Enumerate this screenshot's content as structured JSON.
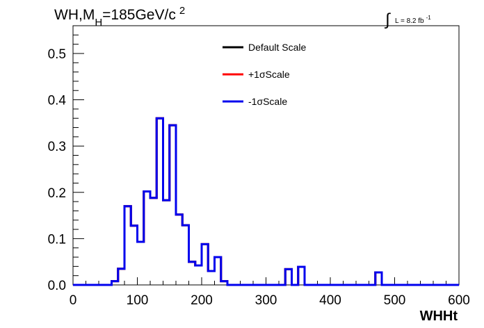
{
  "chart_data": {
    "type": "step",
    "title": {
      "prefix": "WH,M",
      "subscript": "H",
      "value": "=185GeV/c",
      "superscript": "2"
    },
    "lumi": {
      "integral": "∫",
      "text": "L = 8.2 fb",
      "superscript": "-1"
    },
    "xlabel": "WHHt",
    "ylabel": "",
    "xlim": [
      0,
      600
    ],
    "ylim": [
      0,
      0.56
    ],
    "xticks": [
      0,
      100,
      200,
      300,
      400,
      500,
      600
    ],
    "yticks": [
      0.0,
      0.1,
      0.2,
      0.3,
      0.4,
      0.5
    ],
    "xtick_labels": [
      "0",
      "100",
      "200",
      "300",
      "400",
      "500",
      "600"
    ],
    "ytick_labels": [
      "0.0",
      "0.1",
      "0.2",
      "0.3",
      "0.4",
      "0.5"
    ],
    "grid": false,
    "legend_position": "top-center",
    "bin_edges": [
      0,
      10,
      20,
      30,
      40,
      50,
      60,
      70,
      80,
      90,
      100,
      110,
      120,
      130,
      140,
      150,
      160,
      170,
      180,
      190,
      200,
      210,
      220,
      230,
      240,
      250,
      260,
      270,
      280,
      290,
      300,
      310,
      320,
      330,
      340,
      350,
      360,
      370,
      380,
      390,
      400,
      410,
      420,
      430,
      440,
      450,
      460,
      470,
      480,
      490,
      500,
      510,
      520,
      530,
      540,
      550,
      560,
      570,
      580,
      590,
      600
    ],
    "series": [
      {
        "name": "Default Scale",
        "color": "#000000",
        "values": [
          0,
          0,
          0,
          0,
          0,
          0,
          0.008,
          0.035,
          0.17,
          0.128,
          0.093,
          0.202,
          0.188,
          0.36,
          0.183,
          0.345,
          0.152,
          0.129,
          0.05,
          0.042,
          0.088,
          0.03,
          0.06,
          0.008,
          0,
          0,
          0,
          0,
          0,
          0,
          0,
          0,
          0,
          0.034,
          0,
          0.039,
          0,
          0,
          0,
          0,
          0,
          0,
          0,
          0,
          0,
          0,
          0,
          0.027,
          0,
          0,
          0,
          0,
          0,
          0,
          0,
          0,
          0,
          0,
          0,
          0
        ]
      },
      {
        "name": "+1σScale",
        "color": "#ff0000",
        "values": [
          0,
          0,
          0,
          0,
          0,
          0,
          0.008,
          0.035,
          0.17,
          0.128,
          0.093,
          0.202,
          0.188,
          0.36,
          0.183,
          0.345,
          0.152,
          0.129,
          0.05,
          0.042,
          0.088,
          0.03,
          0.06,
          0.008,
          0,
          0,
          0,
          0,
          0,
          0,
          0,
          0,
          0,
          0.034,
          0,
          0.039,
          0,
          0,
          0,
          0,
          0,
          0,
          0,
          0,
          0,
          0,
          0,
          0.027,
          0,
          0,
          0,
          0,
          0,
          0,
          0,
          0,
          0,
          0,
          0,
          0
        ]
      },
      {
        "name": "-1σScale",
        "color": "#0000ee",
        "values": [
          0,
          0,
          0,
          0,
          0,
          0,
          0.008,
          0.035,
          0.17,
          0.128,
          0.093,
          0.202,
          0.188,
          0.36,
          0.183,
          0.345,
          0.152,
          0.129,
          0.05,
          0.042,
          0.088,
          0.03,
          0.06,
          0.008,
          0,
          0,
          0,
          0,
          0,
          0,
          0,
          0,
          0,
          0.034,
          0,
          0.039,
          0,
          0,
          0,
          0,
          0,
          0,
          0,
          0,
          0,
          0,
          0,
          0.027,
          0,
          0,
          0,
          0,
          0,
          0,
          0,
          0,
          0,
          0,
          0,
          0
        ]
      }
    ]
  }
}
